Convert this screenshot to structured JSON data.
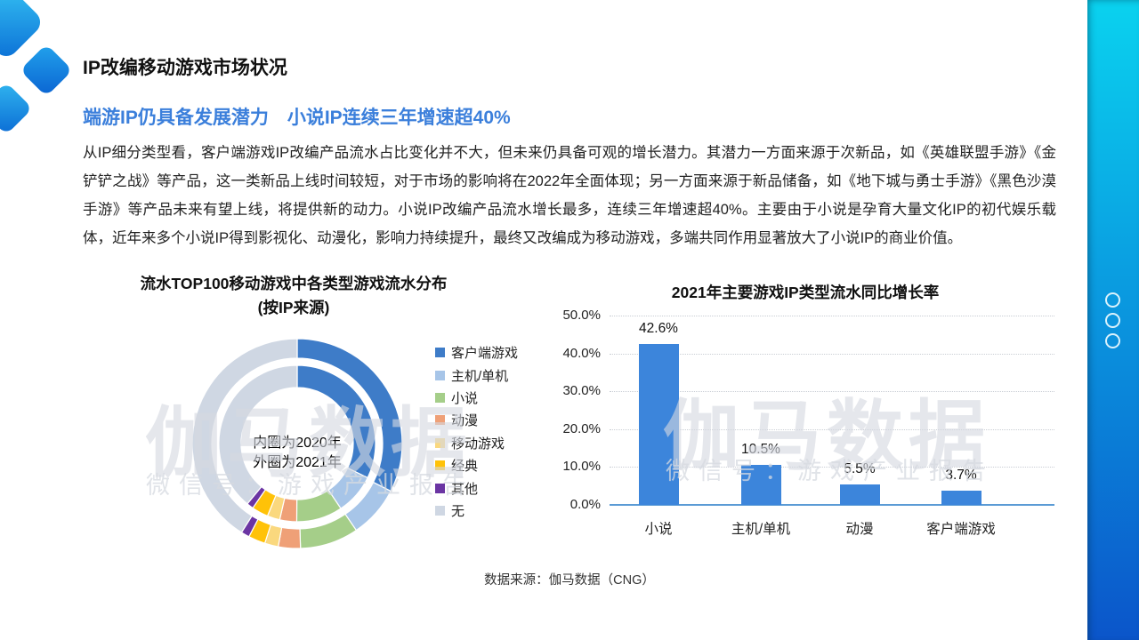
{
  "header": {
    "title": "IP改编移动游戏市场状况",
    "subtitle": "端游IP仍具备发展潜力　小说IP连续三年增速超40%"
  },
  "body_text": "从IP细分类型看，客户端游戏IP改编产品流水占比变化并不大，但未来仍具备可观的增长潜力。其潜力一方面来源于次新品，如《英雄联盟手游》《金铲铲之战》等产品，这一类新品上线时间较短，对于市场的影响将在2022年全面体现；另一方面来源于新品储备，如《地下城与勇士手游》《黑色沙漠手游》等产品未来有望上线，将提供新的动力。小说IP改编产品流水增长最多，连续三年增速超40%。主要由于小说是孕育大量文化IP的初代娱乐载体，近年来多个小说IP得到影视化、动漫化，影响力持续提升，最终又改编成为移动游戏，多端共同作用显著放大了小说IP的商业价值。",
  "watermark": {
    "big": "伽马数据",
    "small": "微信号：游戏产业报告"
  },
  "footer": {
    "source": "数据来源：伽马数据（CNG）"
  },
  "sidebar": {
    "dot_count": 3,
    "gradient_top": "#0AD2EF",
    "gradient_bottom": "#0B55CA"
  },
  "chart_data": [
    {
      "type": "pie",
      "variant": "double-ring-donut",
      "title": "流水TOP100移动游戏中各类型游戏流水分布",
      "subtitle": "(按IP来源)",
      "center_label_line1": "内圈为2020年",
      "center_label_line2": "外圈为2021年",
      "categories": [
        "客户端游戏",
        "主机/单机",
        "小说",
        "动漫",
        "移动游戏",
        "经典",
        "其他",
        "无"
      ],
      "colors": [
        "#3E7CC8",
        "#A7C5E8",
        "#A5CE89",
        "#EFA077",
        "#FAD87E",
        "#FFC208",
        "#6B35A3",
        "#CFD7E3"
      ],
      "series": [
        {
          "name": "2020年(内圈)",
          "values": [
            32.2,
            8.4,
            9.5,
            3.5,
            2.6,
            3.4,
            1.4,
            39.0
          ]
        },
        {
          "name": "2021年(外圈)",
          "values": [
            32.5,
            8.0,
            9.0,
            3.4,
            2.1,
            2.6,
            1.3,
            41.1
          ]
        }
      ],
      "legend_position": "right"
    },
    {
      "type": "bar",
      "title": "2021年主要游戏IP类型流水同比增长率",
      "categories": [
        "小说",
        "主机/单机",
        "动漫",
        "客户端游戏"
      ],
      "values": [
        42.6,
        10.5,
        5.5,
        3.7
      ],
      "data_labels": [
        "42.6%",
        "10.5%",
        "5.5%",
        "3.7%"
      ],
      "y_ticks": [
        "50.0%",
        "40.0%",
        "30.0%",
        "20.0%",
        "10.0%",
        "0.0%"
      ],
      "ylim": [
        0,
        50
      ],
      "bar_color": "#3C85DB",
      "axis_color": "#5B9BD5",
      "grid": "dotted-horizontal"
    }
  ]
}
